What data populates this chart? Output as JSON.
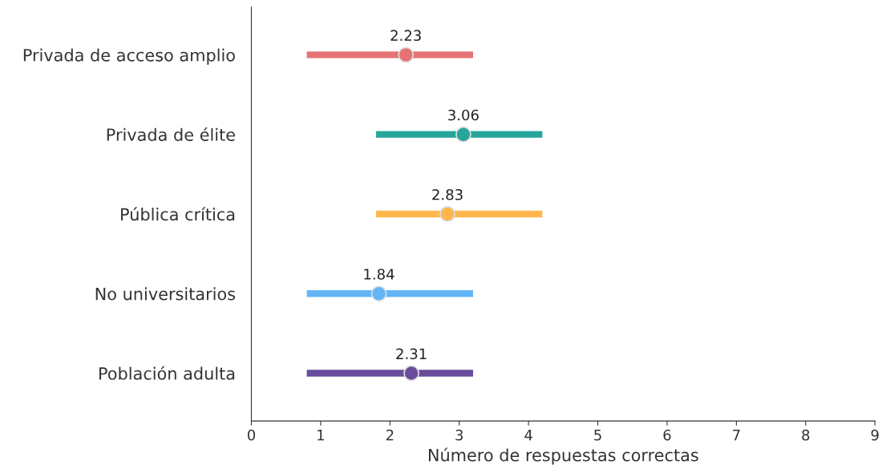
{
  "chart_data": {
    "type": "scatter",
    "orientation": "horizontal",
    "xlabel": "Número de respuestas correctas",
    "categories": [
      "Privada de acceso amplio",
      "Privada de élite",
      "Pública crítica",
      "No universitarios",
      "Población adulta"
    ],
    "values": [
      2.23,
      3.06,
      2.83,
      1.84,
      2.31
    ],
    "colors": [
      "#e57373",
      "#26a69a",
      "#ffb74d",
      "#64b5f6",
      "#6a4c9c"
    ],
    "errors": [
      [
        0.8,
        3.2
      ],
      [
        1.8,
        4.2
      ],
      [
        1.8,
        4.2
      ],
      [
        0.8,
        3.2
      ],
      [
        0.8,
        3.2
      ]
    ],
    "data_labels": true,
    "xlim": [
      0,
      9
    ],
    "xticks": [
      0,
      1,
      2,
      3,
      4,
      5,
      6,
      7,
      8,
      9
    ],
    "grid": false,
    "marker": "circle"
  }
}
